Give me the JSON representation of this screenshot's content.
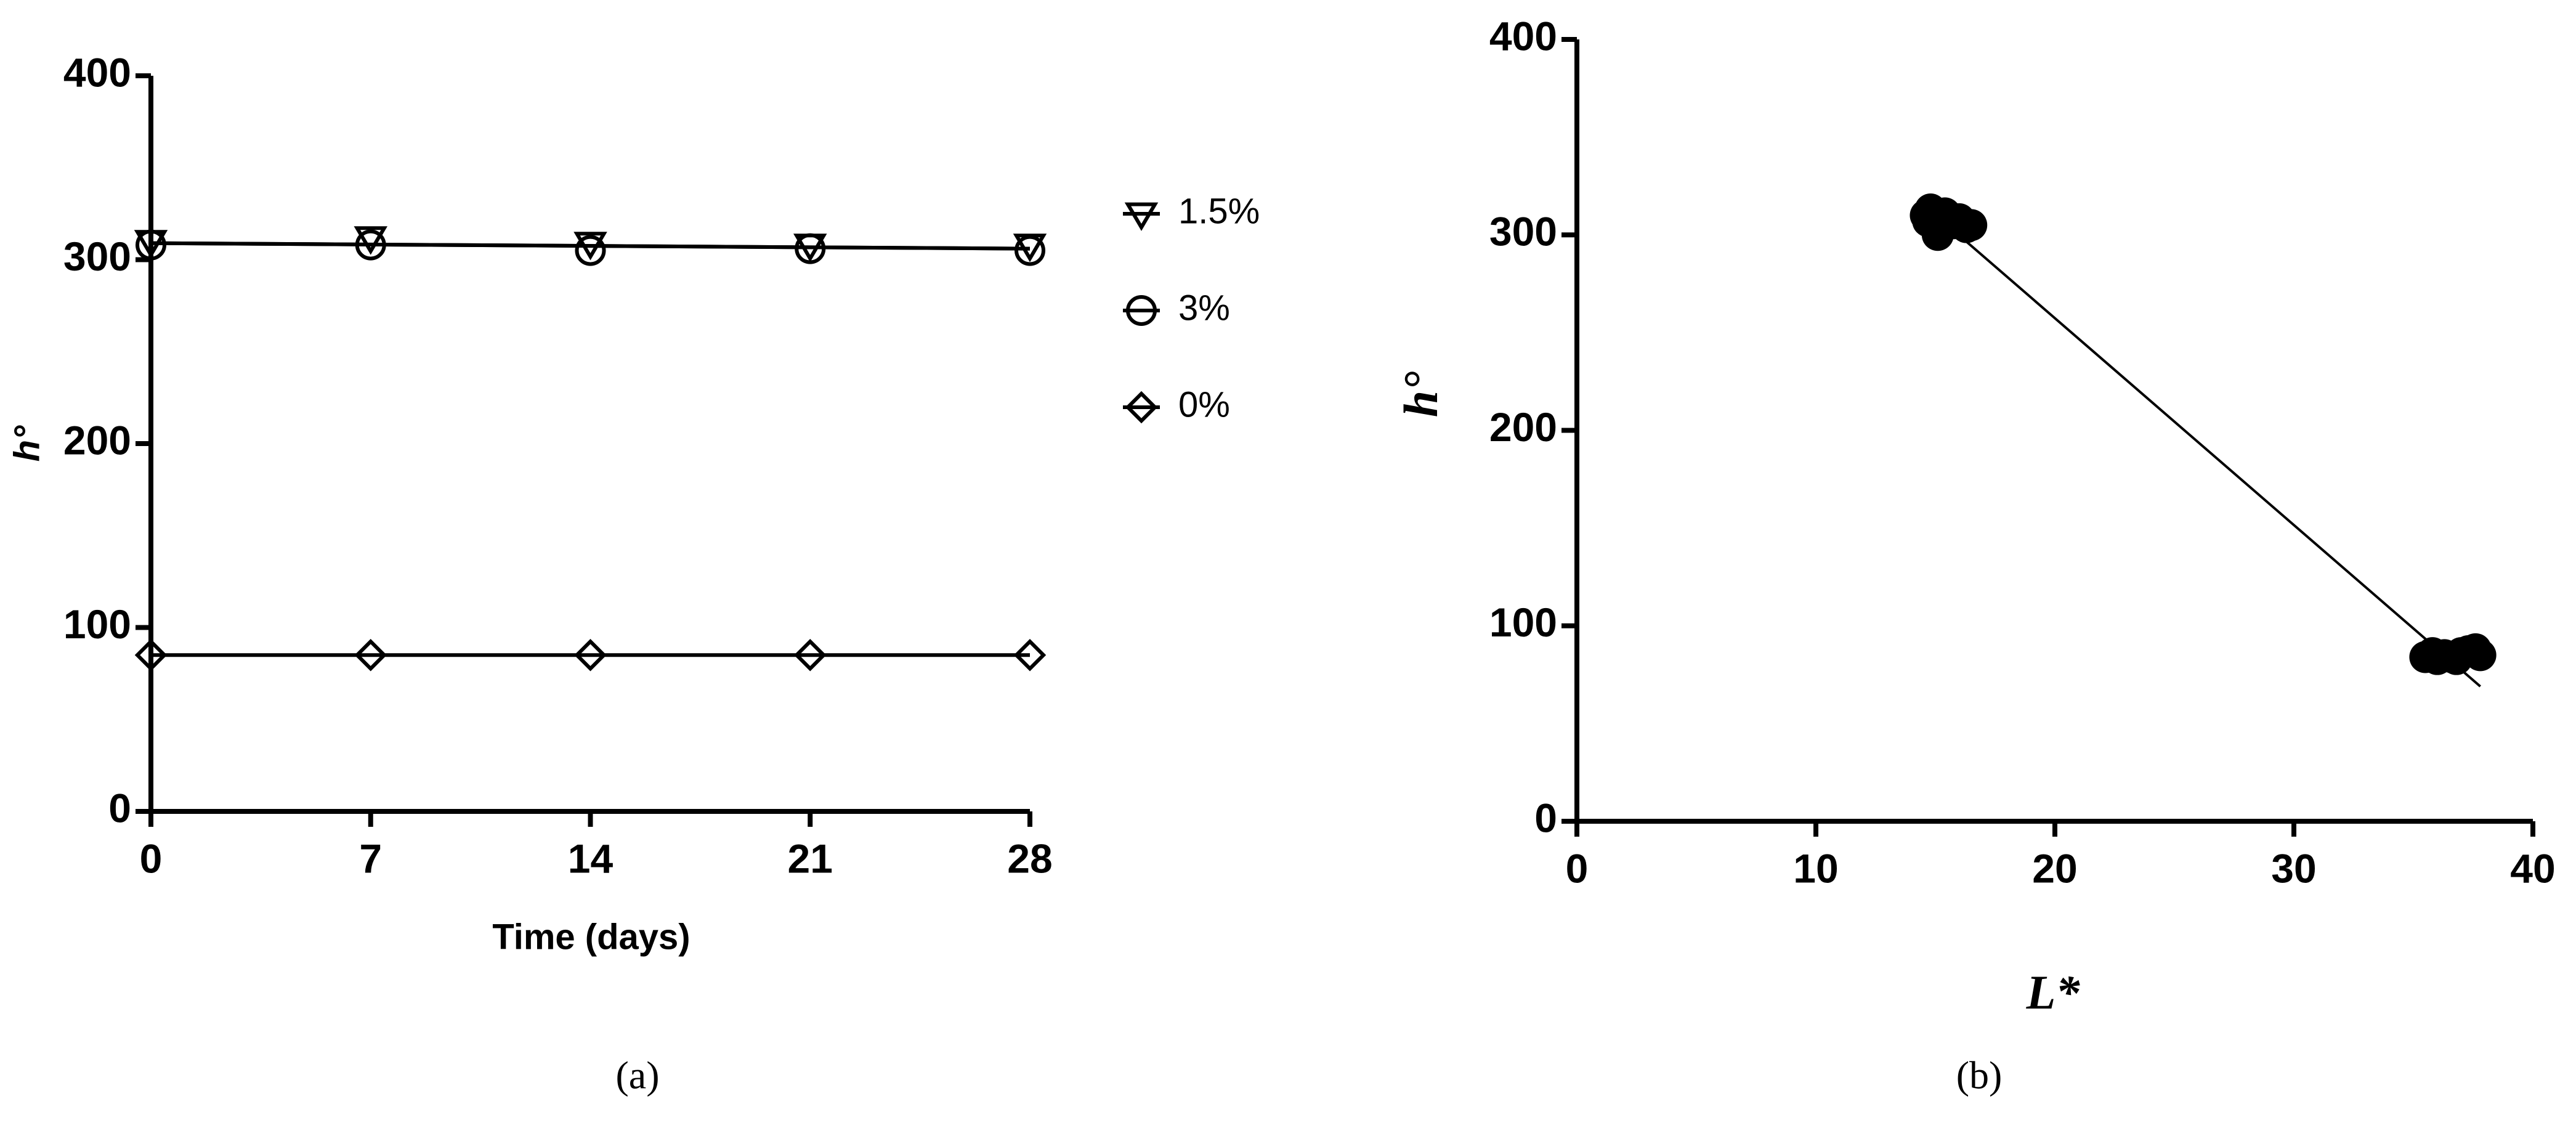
{
  "chart_data": [
    {
      "type": "line",
      "caption": "(a)",
      "x_label": "Time (days)",
      "y_label": "h°",
      "x": [
        0,
        7,
        14,
        21,
        28
      ],
      "series": [
        {
          "name": "1.5%",
          "marker": "triangle-down",
          "color": "#000000",
          "values": [
            310,
            312,
            309,
            308,
            308
          ],
          "fit": [
            309,
            306
          ]
        },
        {
          "name": "3%",
          "marker": "circle",
          "color": "#000000",
          "values": [
            308,
            308,
            305,
            306,
            305
          ],
          "fit": [
            309,
            306
          ]
        },
        {
          "name": "0%",
          "marker": "diamond",
          "color": "#000000",
          "values": [
            85,
            85,
            85,
            85,
            85
          ],
          "fit": [
            85,
            85
          ]
        }
      ],
      "xlim": [
        0,
        28
      ],
      "xticks": [
        0,
        7,
        14,
        21,
        28
      ],
      "ylim": [
        0,
        400
      ],
      "yticks": [
        0,
        100,
        200,
        300,
        400
      ],
      "legend": "right"
    },
    {
      "type": "scatter",
      "caption": "(b)",
      "x_label": "L*",
      "y_label": "h°",
      "series": [
        {
          "color": "#000000",
          "x": [
            14.6,
            14.8,
            15.0,
            15.2,
            15.4,
            15.6,
            15.8,
            16.0,
            16.3,
            16.5,
            15.1,
            14.7,
            35.5,
            35.8,
            36.0,
            36.3,
            36.6,
            37.0,
            37.3,
            37.6,
            37.8,
            36.8
          ],
          "values": [
            310,
            313,
            308,
            305,
            311,
            309,
            306,
            308,
            304,
            305,
            300,
            307,
            84,
            86,
            83,
            85,
            84,
            86,
            87,
            88,
            85,
            83
          ]
        }
      ],
      "fit": {
        "x": [
          15.5,
          37.8
        ],
        "values": [
          305,
          69
        ]
      },
      "xlim": [
        0,
        40
      ],
      "xticks": [
        0,
        10,
        20,
        30,
        40
      ],
      "ylim": [
        0,
        400
      ],
      "yticks": [
        0,
        100,
        200,
        300,
        400
      ]
    }
  ]
}
